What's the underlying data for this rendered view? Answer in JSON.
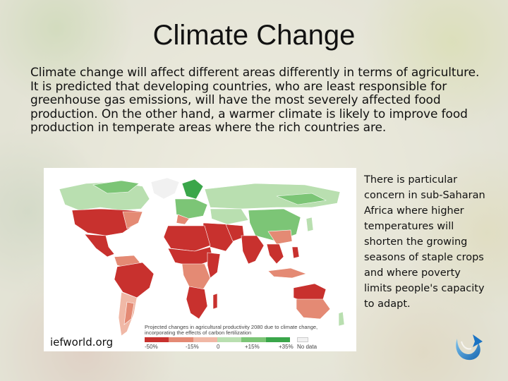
{
  "slide": {
    "title": "Climate Change",
    "intro": "Climate change will affect different areas differently in terms of agriculture. It is predicted that developing countries, who are least responsible for greenhouse gas emissions, will have the most severely affected food production.  On the other hand, a warmer climate is likely to improve food production in temperate areas where the rich countries are.",
    "side_note": "There is particular concern in sub-Saharan Africa where higher temperatures will shorten the growing seasons of staple crops and where poverty limits people's capacity to adapt.",
    "image_credit": "iefworld.org"
  },
  "map": {
    "legend_title": "Projected changes in agricultural productivity 2080 due to climate change, incorporating the effects of carbon fertilization",
    "legend_labels": [
      "-50%",
      "-15%",
      "0",
      "+15%",
      "+35%",
      "No data"
    ],
    "colors": {
      "severe_decline": "#c8312e",
      "decline": "#e48a74",
      "mild_decline": "#f0b8a6",
      "mild_gain": "#b9dfb0",
      "gain": "#7cc576",
      "strong_gain": "#3aa64a",
      "no_data": "#f1f1f1"
    }
  },
  "icons": {
    "nav_logo": "swirl-arrow-icon"
  }
}
